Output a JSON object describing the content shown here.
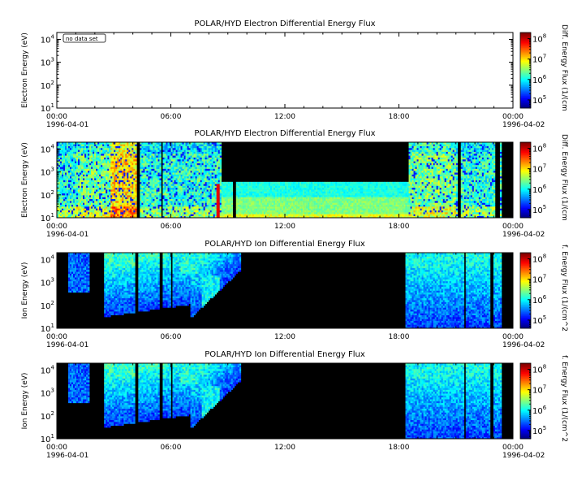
{
  "chart_data": [
    {
      "type": "heatmap",
      "title": "POLAR/HYD  Electron Differential Energy Flux",
      "ylabel": "Electron Energy (eV)",
      "cbar_label": "Diff. Energy Flux (1/(cm",
      "no_data_label": "no data set",
      "has_data": false,
      "mode": "none",
      "x_ticks": [
        "00:00",
        "06:00",
        "12:00",
        "18:00",
        "00:00"
      ],
      "x_dates": [
        "1996-04-01",
        "1996-04-02"
      ],
      "y_scale": "log",
      "y_range": [
        10,
        20000
      ],
      "y_ticks": [
        {
          "base": "10",
          "exp": "1"
        },
        {
          "base": "10",
          "exp": "2"
        },
        {
          "base": "10",
          "exp": "3"
        },
        {
          "base": "10",
          "exp": "4"
        }
      ],
      "cbar_scale": "log",
      "cbar_ticks": [
        {
          "base": "10",
          "exp": "5"
        },
        {
          "base": "10",
          "exp": "6"
        },
        {
          "base": "10",
          "exp": "7"
        },
        {
          "base": "10",
          "exp": "8"
        }
      ]
    },
    {
      "type": "heatmap",
      "title": "POLAR/HYD  Electron Differential Energy Flux",
      "ylabel": "Electron Energy (eV)",
      "cbar_label": "Diff. Energy Flux (1/(cm",
      "no_data_label": "",
      "has_data": true,
      "mode": "electron",
      "x_ticks": [
        "00:00",
        "06:00",
        "12:00",
        "18:00",
        "00:00"
      ],
      "x_dates": [
        "1996-04-01",
        "1996-04-02"
      ],
      "y_scale": "log",
      "y_range": [
        10,
        20000
      ],
      "y_ticks": [
        {
          "base": "10",
          "exp": "1"
        },
        {
          "base": "10",
          "exp": "2"
        },
        {
          "base": "10",
          "exp": "3"
        },
        {
          "base": "10",
          "exp": "4"
        }
      ],
      "cbar_scale": "log",
      "cbar_ticks": [
        {
          "base": "10",
          "exp": "5"
        },
        {
          "base": "10",
          "exp": "6"
        },
        {
          "base": "10",
          "exp": "7"
        },
        {
          "base": "10",
          "exp": "8"
        }
      ]
    },
    {
      "type": "heatmap",
      "title": "POLAR/HYD  Ion Differential Energy Flux",
      "ylabel": "Ion Energy (eV)",
      "cbar_label": "f. Energy Flux (1/(cm^2",
      "no_data_label": "",
      "has_data": true,
      "mode": "ion",
      "x_ticks": [
        "00:00",
        "06:00",
        "12:00",
        "18:00",
        "00:00"
      ],
      "x_dates": [
        "1996-04-01",
        "1996-04-02"
      ],
      "y_scale": "log",
      "y_range": [
        10,
        20000
      ],
      "y_ticks": [
        {
          "base": "10",
          "exp": "1"
        },
        {
          "base": "10",
          "exp": "2"
        },
        {
          "base": "10",
          "exp": "3"
        },
        {
          "base": "10",
          "exp": "4"
        }
      ],
      "cbar_scale": "log",
      "cbar_ticks": [
        {
          "base": "10",
          "exp": "5"
        },
        {
          "base": "10",
          "exp": "6"
        },
        {
          "base": "10",
          "exp": "7"
        },
        {
          "base": "10",
          "exp": "8"
        }
      ]
    },
    {
      "type": "heatmap",
      "title": "POLAR/HYD  Ion Differential Energy Flux",
      "ylabel": "Ion Energy (eV)",
      "cbar_label": "f. Energy Flux (1/(cm^2",
      "no_data_label": "",
      "has_data": true,
      "mode": "ion",
      "x_ticks": [
        "00:00",
        "06:00",
        "12:00",
        "18:00",
        "00:00"
      ],
      "x_dates": [
        "1996-04-01",
        "1996-04-02"
      ],
      "y_scale": "log",
      "y_range": [
        10,
        20000
      ],
      "y_ticks": [
        {
          "base": "10",
          "exp": "1"
        },
        {
          "base": "10",
          "exp": "2"
        },
        {
          "base": "10",
          "exp": "3"
        },
        {
          "base": "10",
          "exp": "4"
        }
      ],
      "cbar_scale": "log",
      "cbar_ticks": [
        {
          "base": "10",
          "exp": "5"
        },
        {
          "base": "10",
          "exp": "6"
        },
        {
          "base": "10",
          "exp": "7"
        },
        {
          "base": "10",
          "exp": "8"
        }
      ]
    }
  ]
}
